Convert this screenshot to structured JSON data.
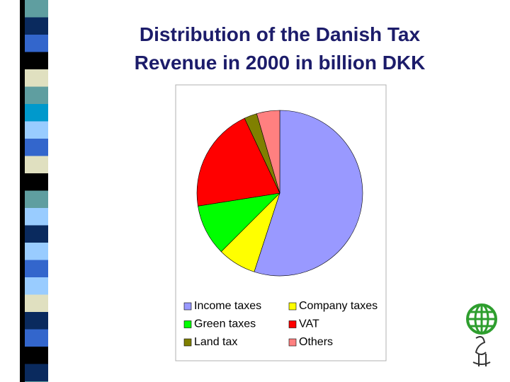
{
  "chart_data": {
    "type": "pie",
    "title": [
      "Distribution of the Danish Tax",
      "Revenue in 2000 in billion DKK"
    ],
    "categories": [
      "Income taxes",
      "Company taxes",
      "Green taxes",
      "VAT",
      "Land tax",
      "Others"
    ],
    "values": [
      55,
      7.5,
      10,
      20.5,
      2.5,
      4.5
    ],
    "colors": [
      "#9999ff",
      "#ffff00",
      "#00ff00",
      "#ff0000",
      "#808000",
      "#ff8080"
    ],
    "legend": "bottom"
  }
}
